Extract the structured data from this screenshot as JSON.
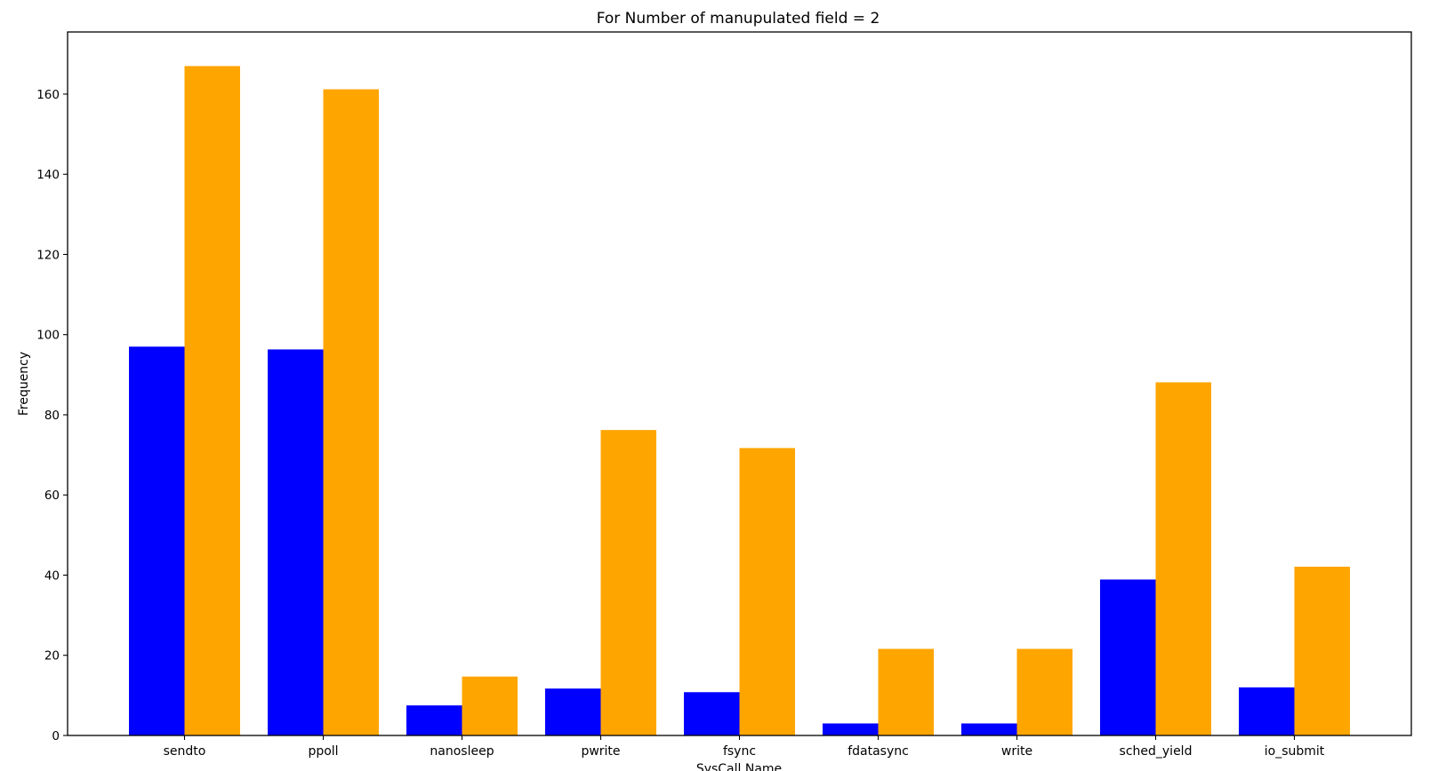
{
  "chart_data": {
    "type": "bar",
    "title": "For Number of manupulated field = 2",
    "xlabel": "SysCall Name",
    "ylabel": "Frequency",
    "categories": [
      "sendto",
      "ppoll",
      "nanosleep",
      "pwrite",
      "fsync",
      "fdatasync",
      "write",
      "sched_yield",
      "io_submit"
    ],
    "series": [
      {
        "color": "#0000ff",
        "values": [
          97,
          96.3,
          7.5,
          11.7,
          10.8,
          3,
          3,
          38.9,
          12
        ]
      },
      {
        "color": "#ffa500",
        "values": [
          167,
          161.2,
          14.7,
          76.2,
          71.7,
          21.6,
          21.6,
          88.1,
          42.1
        ]
      }
    ],
    "ylim": [
      0,
      175.5
    ],
    "yticks": [
      0,
      20,
      40,
      60,
      80,
      100,
      120,
      140,
      160
    ],
    "grid": false,
    "legend": "none"
  }
}
